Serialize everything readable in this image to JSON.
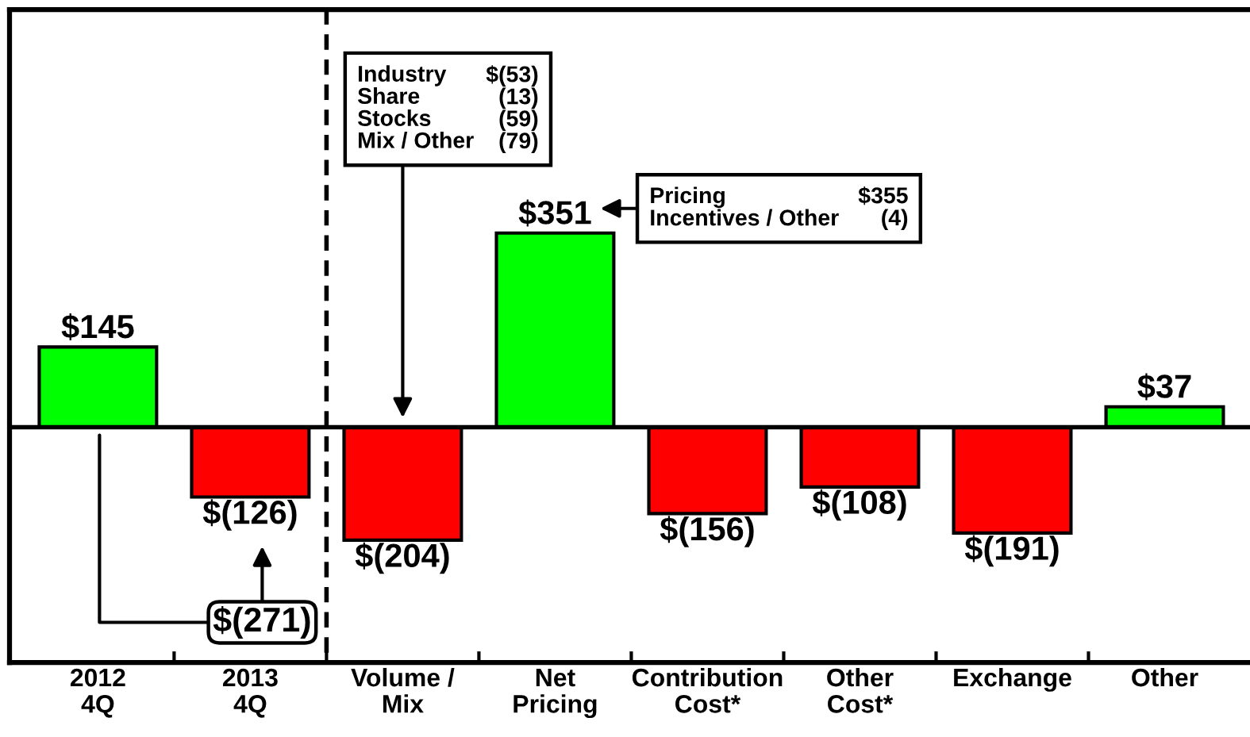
{
  "chart_data": {
    "type": "bar",
    "categories": [
      "2012\n4Q",
      "2013\n4Q",
      "Volume /\nMix",
      "Net\nPricing",
      "Contribution\nCost*",
      "Other\nCost*",
      "Exchange",
      "Other"
    ],
    "values": [
      145,
      -126,
      -204,
      351,
      -156,
      -108,
      -191,
      37
    ],
    "colors": [
      "#00ff00",
      "#ff0000",
      "#ff0000",
      "#00ff00",
      "#ff0000",
      "#ff0000",
      "#ff0000",
      "#00ff00"
    ],
    "value_labels": [
      "$145",
      "$(126)",
      "$(204)",
      "$351",
      "$(156)",
      "$(108)",
      "$(191)",
      "$37"
    ],
    "ylim": [
      -425,
      755
    ],
    "tick_labels": "x",
    "annotations": [
      "Industry",
      "$(53)",
      "Share",
      "(13)",
      "Stocks",
      "(59)",
      "Mix / Other",
      "(79)",
      "Pricing",
      "$355",
      "Incentives / Other",
      "(4)",
      "$(271)"
    ]
  }
}
